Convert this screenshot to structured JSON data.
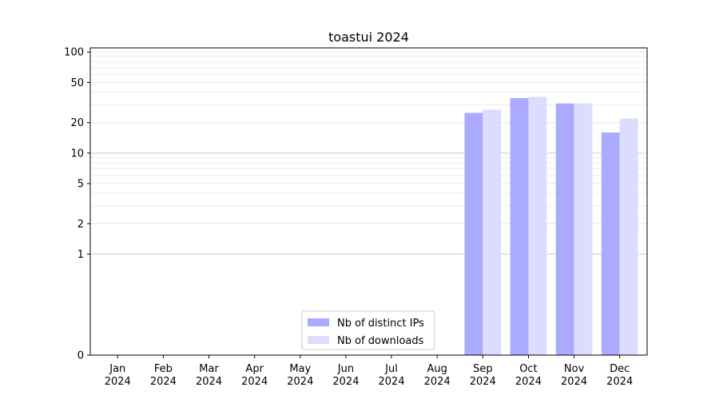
{
  "chart_data": {
    "type": "bar",
    "title": "toastui 2024",
    "xlabel": "",
    "ylabel": "",
    "yscale": "symlog",
    "ylim": [
      0,
      110
    ],
    "yticks": [
      0,
      1,
      2,
      5,
      10,
      20,
      50,
      100
    ],
    "grid": true,
    "legend_position": "lower-center",
    "categories": [
      [
        "Jan",
        "2024"
      ],
      [
        "Feb",
        "2024"
      ],
      [
        "Mar",
        "2024"
      ],
      [
        "Apr",
        "2024"
      ],
      [
        "May",
        "2024"
      ],
      [
        "Jun",
        "2024"
      ],
      [
        "Jul",
        "2024"
      ],
      [
        "Aug",
        "2024"
      ],
      [
        "Sep",
        "2024"
      ],
      [
        "Oct",
        "2024"
      ],
      [
        "Nov",
        "2024"
      ],
      [
        "Dec",
        "2024"
      ]
    ],
    "series": [
      {
        "name": "Nb of distinct IPs",
        "color": "#aaaaff",
        "values": [
          0,
          0,
          0,
          0,
          0,
          0,
          0,
          0,
          25,
          35,
          31,
          16
        ]
      },
      {
        "name": "Nb of downloads",
        "color": "#dcdcff",
        "values": [
          0,
          0,
          0,
          0,
          0,
          0,
          0,
          0,
          27,
          36,
          31,
          22
        ]
      }
    ]
  }
}
